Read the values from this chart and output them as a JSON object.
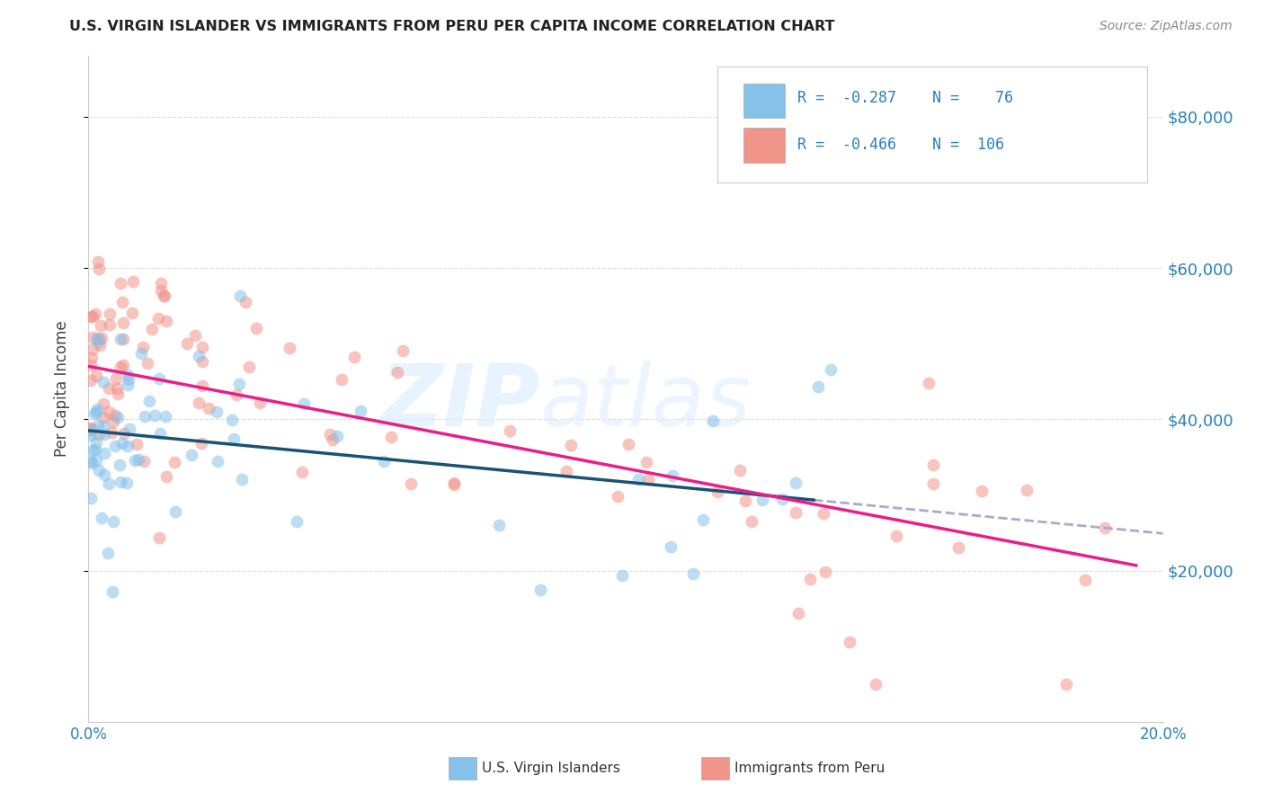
{
  "title": "U.S. VIRGIN ISLANDER VS IMMIGRANTS FROM PERU PER CAPITA INCOME CORRELATION CHART",
  "source": "Source: ZipAtlas.com",
  "ylabel": "Per Capita Income",
  "xlim": [
    0.0,
    0.2
  ],
  "ylim": [
    0,
    88000
  ],
  "ytick_values": [
    20000,
    40000,
    60000,
    80000
  ],
  "color_blue": "#85c1e9",
  "color_pink": "#f1948a",
  "color_blue_line": "#1a5276",
  "color_pink_line": "#e91e8c",
  "color_dash": "#aaaacc",
  "background_color": "#ffffff",
  "footer_label1": "U.S. Virgin Islanders",
  "footer_label2": "Immigrants from Peru",
  "grid_color": "#dddddd",
  "scatter_alpha": 0.55,
  "scatter_size": 100,
  "blue_intercept": 38500,
  "blue_slope": -68000,
  "pink_intercept": 47000,
  "pink_slope": -135000,
  "blue_line_end": 0.135,
  "pink_line_end": 0.195
}
